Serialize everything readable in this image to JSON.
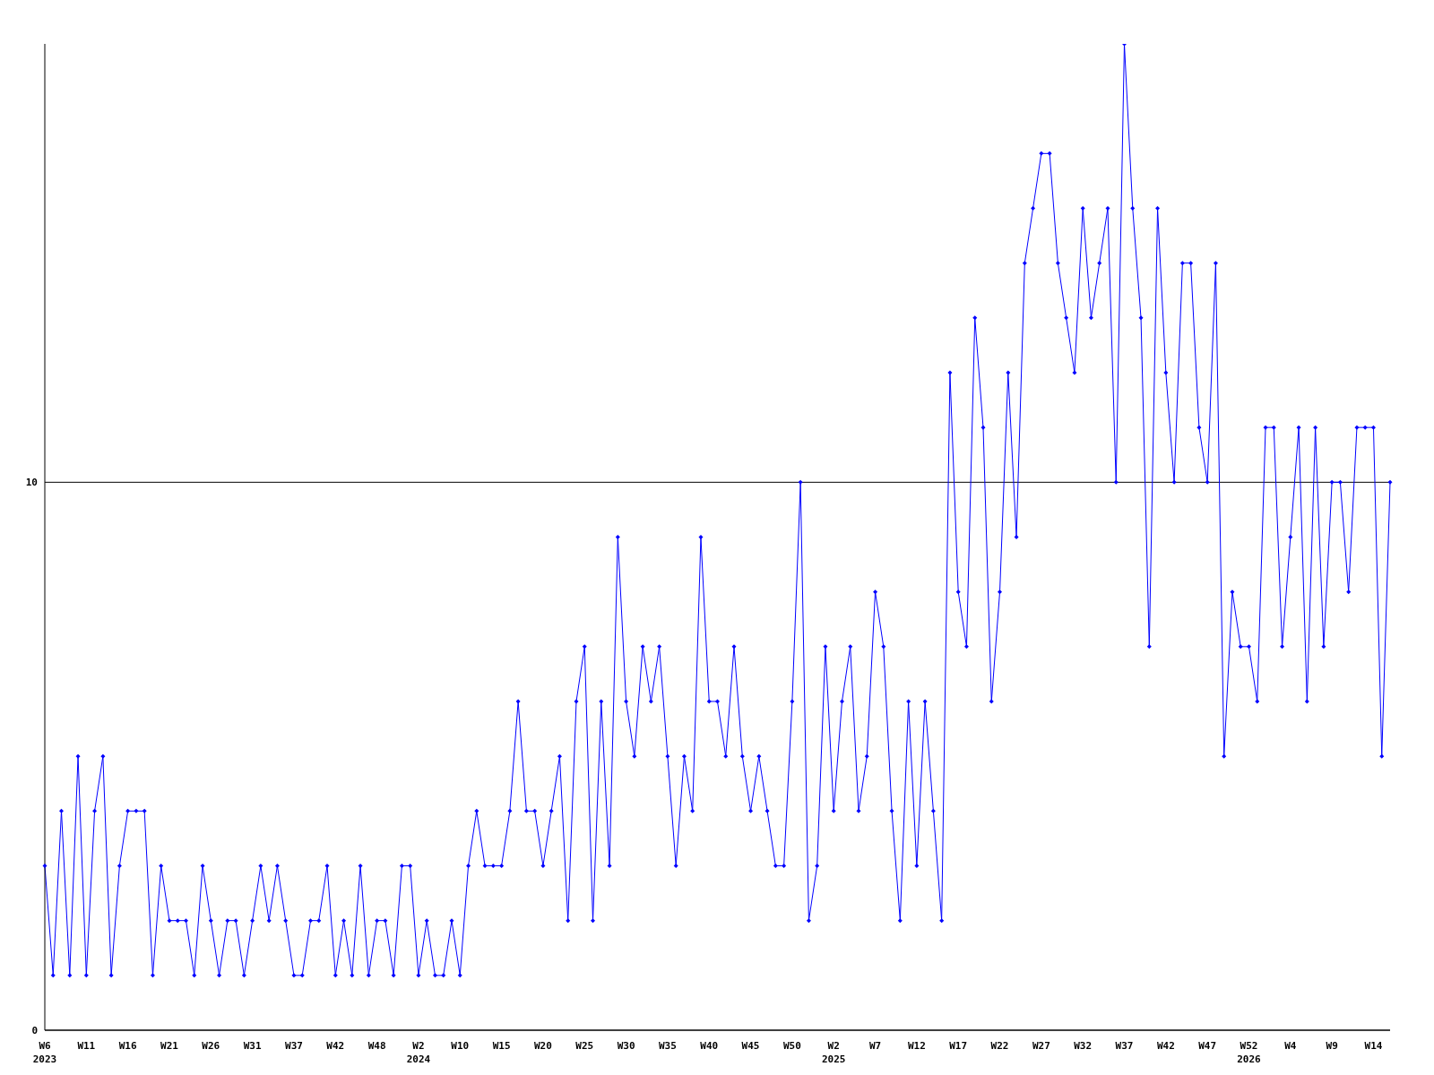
{
  "chart_data": {
    "type": "line",
    "categories": [
      "W6\n2023",
      null,
      null,
      null,
      null,
      "W11",
      null,
      null,
      null,
      null,
      "W16",
      null,
      null,
      null,
      null,
      "W21",
      null,
      null,
      null,
      null,
      "W26",
      null,
      null,
      null,
      null,
      "W31",
      null,
      null,
      null,
      null,
      "W37",
      null,
      null,
      null,
      null,
      "W42",
      null,
      null,
      null,
      null,
      "W48",
      null,
      null,
      null,
      null,
      "W2\n2024",
      null,
      null,
      null,
      null,
      "W10",
      null,
      null,
      null,
      null,
      "W15",
      null,
      null,
      null,
      null,
      "W20",
      null,
      null,
      null,
      null,
      "W25",
      null,
      null,
      null,
      null,
      "W30",
      null,
      null,
      null,
      null,
      "W35",
      null,
      null,
      null,
      null,
      "W40",
      null,
      null,
      null,
      null,
      "W45",
      null,
      null,
      null,
      null,
      "W50",
      null,
      null,
      null,
      null,
      "W2\n2025",
      null,
      null,
      null,
      null,
      "W7",
      null,
      null,
      null,
      null,
      "W12",
      null,
      null,
      null,
      null,
      "W17",
      null,
      null,
      null,
      null,
      "W22",
      null,
      null,
      null,
      null,
      "W27",
      null,
      null,
      null,
      null,
      "W32",
      null,
      null,
      null,
      null,
      "W37",
      null,
      null,
      null,
      null,
      "W42",
      null,
      null,
      null,
      null,
      "W47",
      null,
      null,
      null,
      null,
      "W52\n2026",
      null,
      null,
      null,
      null,
      "W4",
      null,
      null,
      null,
      null,
      "W9",
      null,
      null,
      null,
      null,
      "W14",
      null,
      null
    ],
    "series": [
      {
        "color": "#0000ff",
        "values": [
          3,
          1,
          4,
          1,
          5,
          1,
          4,
          5,
          1,
          3,
          4,
          4,
          4,
          1,
          3,
          2,
          2,
          2,
          1,
          3,
          2,
          1,
          2,
          2,
          1,
          2,
          3,
          2,
          3,
          2,
          1,
          1,
          2,
          2,
          3,
          1,
          2,
          1,
          3,
          1,
          2,
          2,
          1,
          3,
          3,
          1,
          2,
          1,
          1,
          2,
          1,
          3,
          4,
          3,
          3,
          3,
          4,
          6,
          4,
          4,
          3,
          4,
          5,
          2,
          6,
          7,
          2,
          6,
          3,
          9,
          6,
          5,
          7,
          6,
          7,
          5,
          3,
          5,
          4,
          9,
          6,
          6,
          5,
          7,
          5,
          4,
          5,
          4,
          3,
          3,
          6,
          10,
          2,
          3,
          7,
          4,
          6,
          7,
          4,
          5,
          8,
          7,
          4,
          2,
          6,
          3,
          6,
          4,
          2,
          12,
          8,
          7,
          13,
          11,
          6,
          8,
          12,
          9,
          14,
          15,
          16,
          16,
          14,
          13,
          12,
          15,
          13,
          14,
          15,
          10,
          18,
          15,
          13,
          7,
          15,
          12,
          10,
          14,
          14,
          11,
          10,
          14,
          5,
          8,
          7,
          7,
          6,
          11,
          11,
          7,
          9,
          11,
          6,
          11,
          7,
          10,
          10,
          8,
          11,
          11,
          11,
          5,
          10
        ]
      }
    ],
    "ylim": [
      0,
      18
    ],
    "yticks": [
      0,
      10
    ],
    "grid": "y",
    "marker": "diamond",
    "line_style": "solid"
  }
}
